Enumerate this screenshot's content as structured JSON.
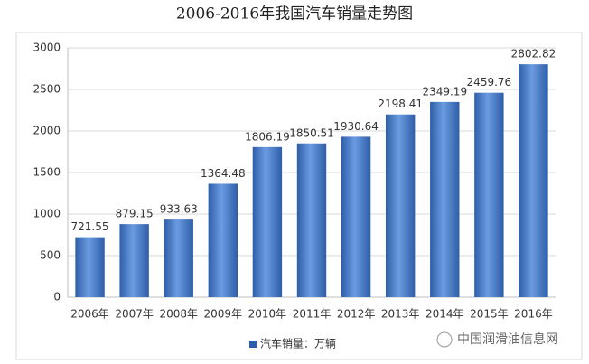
{
  "chart_data": {
    "type": "bar",
    "title": "2006-2016年我国汽车销量走势图",
    "categories": [
      "2006年",
      "2007年",
      "2008年",
      "2009年",
      "2010年",
      "2011年",
      "2012年",
      "2013年",
      "2014年",
      "2015年",
      "2016年"
    ],
    "series": [
      {
        "name": "汽车销量：万辆",
        "color": "#2e5ea8",
        "values": [
          721.55,
          879.15,
          933.63,
          1364.48,
          1806.19,
          1850.51,
          1930.64,
          2198.41,
          2349.19,
          2459.76,
          2802.82
        ]
      }
    ],
    "ylim": [
      0,
      3000
    ],
    "yticks": [
      0,
      500,
      1000,
      1500,
      2000,
      2500,
      3000
    ],
    "grid": true,
    "legend": "bottom",
    "watermark": "中国润滑油信息网"
  }
}
